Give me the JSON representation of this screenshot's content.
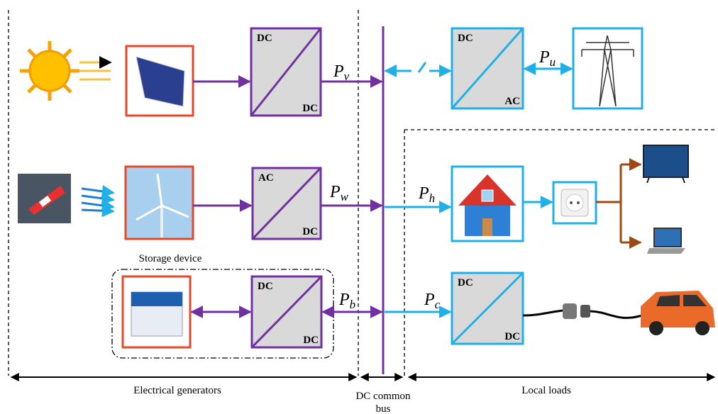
{
  "converters": [
    {
      "top": "DC",
      "bottom": "DC"
    },
    {
      "top": "AC",
      "bottom": "DC"
    },
    {
      "top": "DC",
      "bottom": "DC"
    },
    {
      "top": "DC",
      "bottom": "AC"
    },
    {
      "top": "DC",
      "bottom": "DC"
    }
  ],
  "power_labels": [
    {
      "symbol": "P",
      "subscript": "v"
    },
    {
      "symbol": "P",
      "subscript": "w"
    },
    {
      "symbol": "P",
      "subscript": "b"
    },
    {
      "symbol": "P",
      "subscript": "u"
    },
    {
      "symbol": "P",
      "subscript": "h"
    },
    {
      "symbol": "P",
      "subscript": "c"
    }
  ],
  "labels": {
    "storage": "Storage device",
    "generators": "Electrical generators",
    "bus_line1": "DC common",
    "bus_line2": "bus",
    "loads": "Local loads"
  }
}
